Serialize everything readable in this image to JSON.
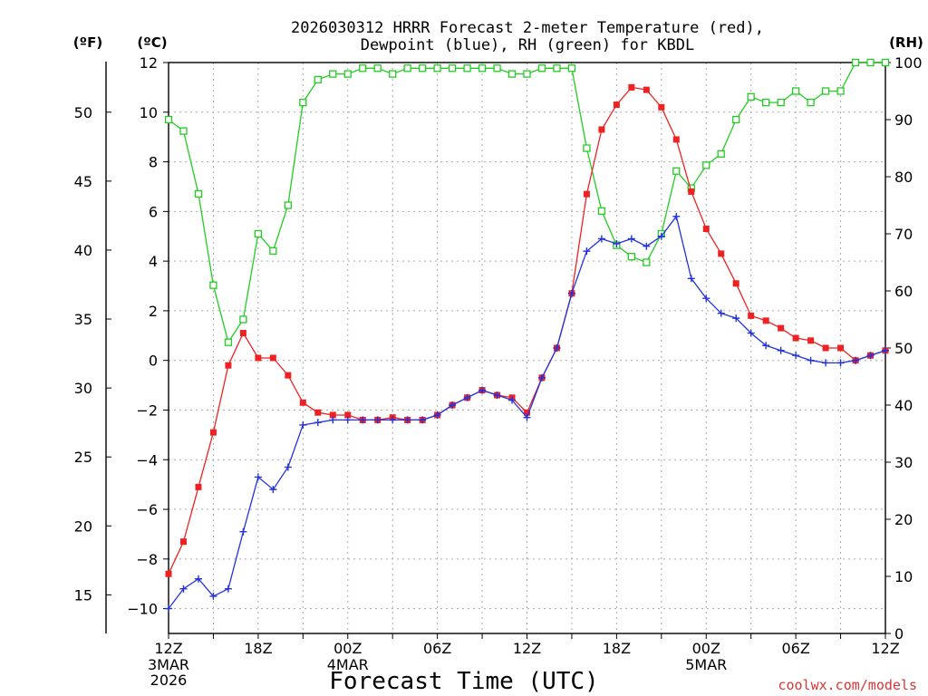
{
  "chart_data": {
    "type": "line",
    "title_line1": "2026030312 HRRR Forecast 2-meter Temperature (red),",
    "title_line2": "Dewpoint (blue), RH (green) for KBDL",
    "unit_f": "(ºF)",
    "unit_c": "(ºC)",
    "unit_rh": "(RH)",
    "xlabel": "Forecast Time (UTC)",
    "credit": "coolwx.com/models",
    "x_hours": [
      0,
      1,
      2,
      3,
      4,
      5,
      6,
      7,
      8,
      9,
      10,
      11,
      12,
      13,
      14,
      15,
      16,
      17,
      18,
      19,
      20,
      21,
      22,
      23,
      24,
      25,
      26,
      27,
      28,
      29,
      30,
      31,
      32,
      33,
      34,
      35,
      36,
      37,
      38,
      39,
      40,
      41,
      42,
      43,
      44,
      45,
      46,
      47,
      48
    ],
    "xlim": [
      0,
      48
    ],
    "x_ticks": [
      {
        "hour": 0,
        "label": "12Z",
        "sub1": "3MAR",
        "sub2": "2026"
      },
      {
        "hour": 6,
        "label": "18Z",
        "sub1": "",
        "sub2": ""
      },
      {
        "hour": 12,
        "label": "00Z",
        "sub1": "4MAR",
        "sub2": ""
      },
      {
        "hour": 18,
        "label": "06Z",
        "sub1": "",
        "sub2": ""
      },
      {
        "hour": 24,
        "label": "12Z",
        "sub1": "",
        "sub2": ""
      },
      {
        "hour": 30,
        "label": "18Z",
        "sub1": "",
        "sub2": ""
      },
      {
        "hour": 36,
        "label": "00Z",
        "sub1": "5MAR",
        "sub2": ""
      },
      {
        "hour": 42,
        "label": "06Z",
        "sub1": "",
        "sub2": ""
      },
      {
        "hour": 48,
        "label": "12Z",
        "sub1": "",
        "sub2": ""
      }
    ],
    "celsius_axis": {
      "lim": [
        -11,
        12
      ],
      "ticks": [
        12,
        10,
        8,
        6,
        4,
        2,
        0,
        -2,
        -4,
        -6,
        -8,
        -10
      ]
    },
    "fahrenheit_axis": {
      "lim": [
        12.2,
        53.6
      ],
      "ticks": [
        50,
        45,
        40,
        35,
        30,
        25,
        20,
        15
      ]
    },
    "rh_axis": {
      "lim": [
        0,
        100
      ],
      "ticks": [
        100,
        90,
        80,
        70,
        60,
        50,
        40,
        30,
        20,
        10,
        0
      ]
    },
    "series": [
      {
        "name": "Temperature",
        "unit": "C",
        "color": "#ee2222",
        "marker": "filled-square",
        "values": [
          -8.6,
          -7.3,
          -5.1,
          -2.9,
          -0.2,
          1.1,
          0.1,
          0.1,
          -0.6,
          -1.7,
          -2.1,
          -2.2,
          -2.2,
          -2.4,
          -2.4,
          -2.3,
          -2.4,
          -2.4,
          -2.2,
          -1.8,
          -1.5,
          -1.2,
          -1.4,
          -1.5,
          -2.1,
          -0.7,
          0.5,
          2.7,
          6.7,
          9.3,
          10.3,
          11.0,
          10.9,
          10.2,
          8.9,
          6.8,
          5.3,
          4.3,
          3.1,
          1.8,
          1.6,
          1.3,
          0.9,
          0.8,
          0.5,
          0.5,
          0.0,
          0.2,
          0.4
        ]
      },
      {
        "name": "Dewpoint",
        "unit": "C",
        "color": "#2233dd",
        "marker": "plus",
        "values": [
          -10.0,
          -9.2,
          -8.8,
          -9.5,
          -9.2,
          -6.9,
          -4.7,
          -5.2,
          -4.3,
          -2.6,
          -2.5,
          -2.4,
          -2.4,
          -2.4,
          -2.4,
          -2.4,
          -2.4,
          -2.4,
          -2.2,
          -1.8,
          -1.5,
          -1.2,
          -1.4,
          -1.6,
          -2.3,
          -0.7,
          0.5,
          2.7,
          4.4,
          4.9,
          4.7,
          4.9,
          4.6,
          5.0,
          5.8,
          3.3,
          2.5,
          1.9,
          1.7,
          1.1,
          0.6,
          0.4,
          0.2,
          0.0,
          -0.1,
          -0.1,
          0.0,
          0.2,
          0.4
        ]
      },
      {
        "name": "RH",
        "unit": "%",
        "color": "#22cc22",
        "marker": "open-square",
        "values": [
          90,
          88,
          77,
          61,
          51,
          55,
          70,
          67,
          75,
          93,
          97,
          98,
          98,
          99,
          99,
          98,
          99,
          99,
          99,
          99,
          99,
          99,
          99,
          98,
          98,
          99,
          99,
          99,
          85,
          74,
          68,
          66,
          65,
          70,
          81,
          78,
          82,
          84,
          90,
          94,
          93,
          93,
          95,
          93,
          95,
          95,
          100,
          100,
          100
        ]
      }
    ]
  }
}
